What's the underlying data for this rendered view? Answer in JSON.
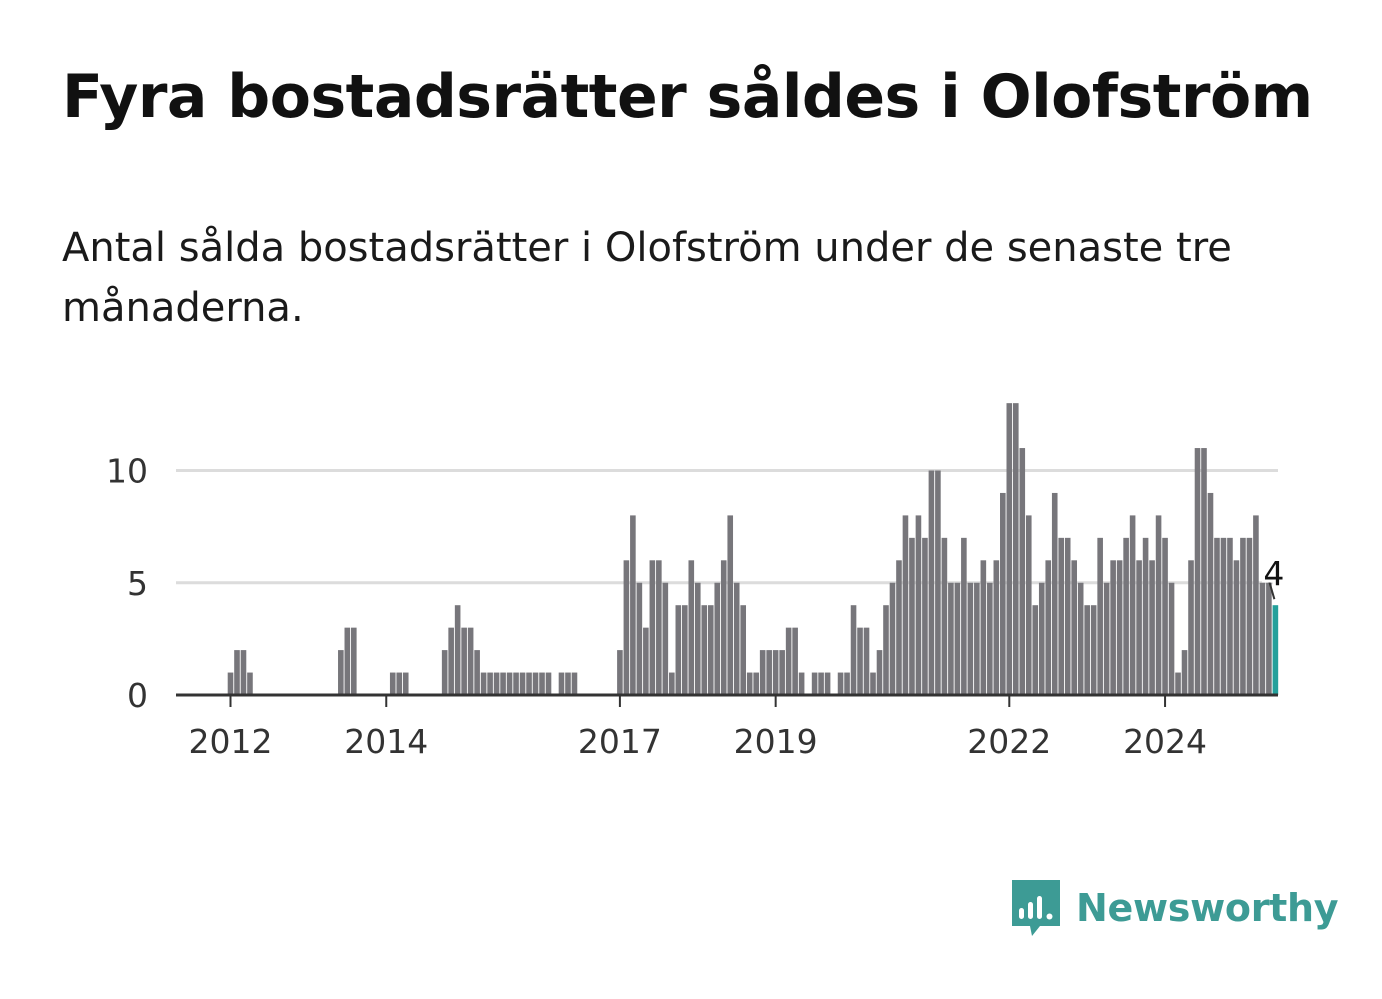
{
  "title": "Fyra bostadsrätter såldes i Olofström",
  "subtitle": "Antal sålda bostadsrätter i Olofström under de senaste tre månaderna.",
  "brand": {
    "name": "Newsworthy",
    "icon": "newsworthy-logo-icon",
    "color": "#3d9b95"
  },
  "chart_data": {
    "type": "bar",
    "title": "",
    "xlabel": "",
    "ylabel": "",
    "x_start": "2011-10",
    "x_step": "month",
    "values": [
      0,
      0,
      0,
      1,
      2,
      2,
      1,
      0,
      0,
      0,
      0,
      0,
      0,
      0,
      0,
      0,
      0,
      0,
      0,
      0,
      2,
      3,
      3,
      0,
      0,
      0,
      0,
      0,
      1,
      1,
      1,
      0,
      0,
      0,
      0,
      0,
      2,
      3,
      4,
      3,
      3,
      2,
      1,
      1,
      1,
      1,
      1,
      1,
      1,
      1,
      1,
      1,
      1,
      0,
      1,
      1,
      1,
      0,
      0,
      0,
      0,
      0,
      0,
      2,
      6,
      8,
      5,
      3,
      6,
      6,
      5,
      1,
      4,
      4,
      6,
      5,
      4,
      4,
      5,
      6,
      8,
      5,
      4,
      1,
      1,
      2,
      2,
      2,
      2,
      3,
      3,
      1,
      0,
      1,
      1,
      1,
      0,
      1,
      1,
      4,
      3,
      3,
      1,
      2,
      4,
      5,
      6,
      8,
      7,
      8,
      7,
      10,
      10,
      7,
      5,
      5,
      7,
      5,
      5,
      6,
      5,
      6,
      9,
      13,
      13,
      11,
      8,
      4,
      5,
      6,
      9,
      7,
      7,
      6,
      5,
      4,
      4,
      7,
      5,
      6,
      6,
      7,
      8,
      6,
      7,
      6,
      8,
      7,
      5,
      1,
      2,
      6,
      11,
      11,
      9,
      7,
      7,
      7,
      6,
      7,
      7,
      8,
      5,
      5,
      4
    ],
    "highlight_last": true,
    "highlight_label": "4",
    "yticks": [
      0,
      5,
      10
    ],
    "ylim": [
      0,
      13
    ],
    "xticks": [
      "2012",
      "2014",
      "2017",
      "2019",
      "2022",
      "2024"
    ],
    "grid": true,
    "bar_color": "#77767b",
    "highlight_color": "#23a09b"
  }
}
